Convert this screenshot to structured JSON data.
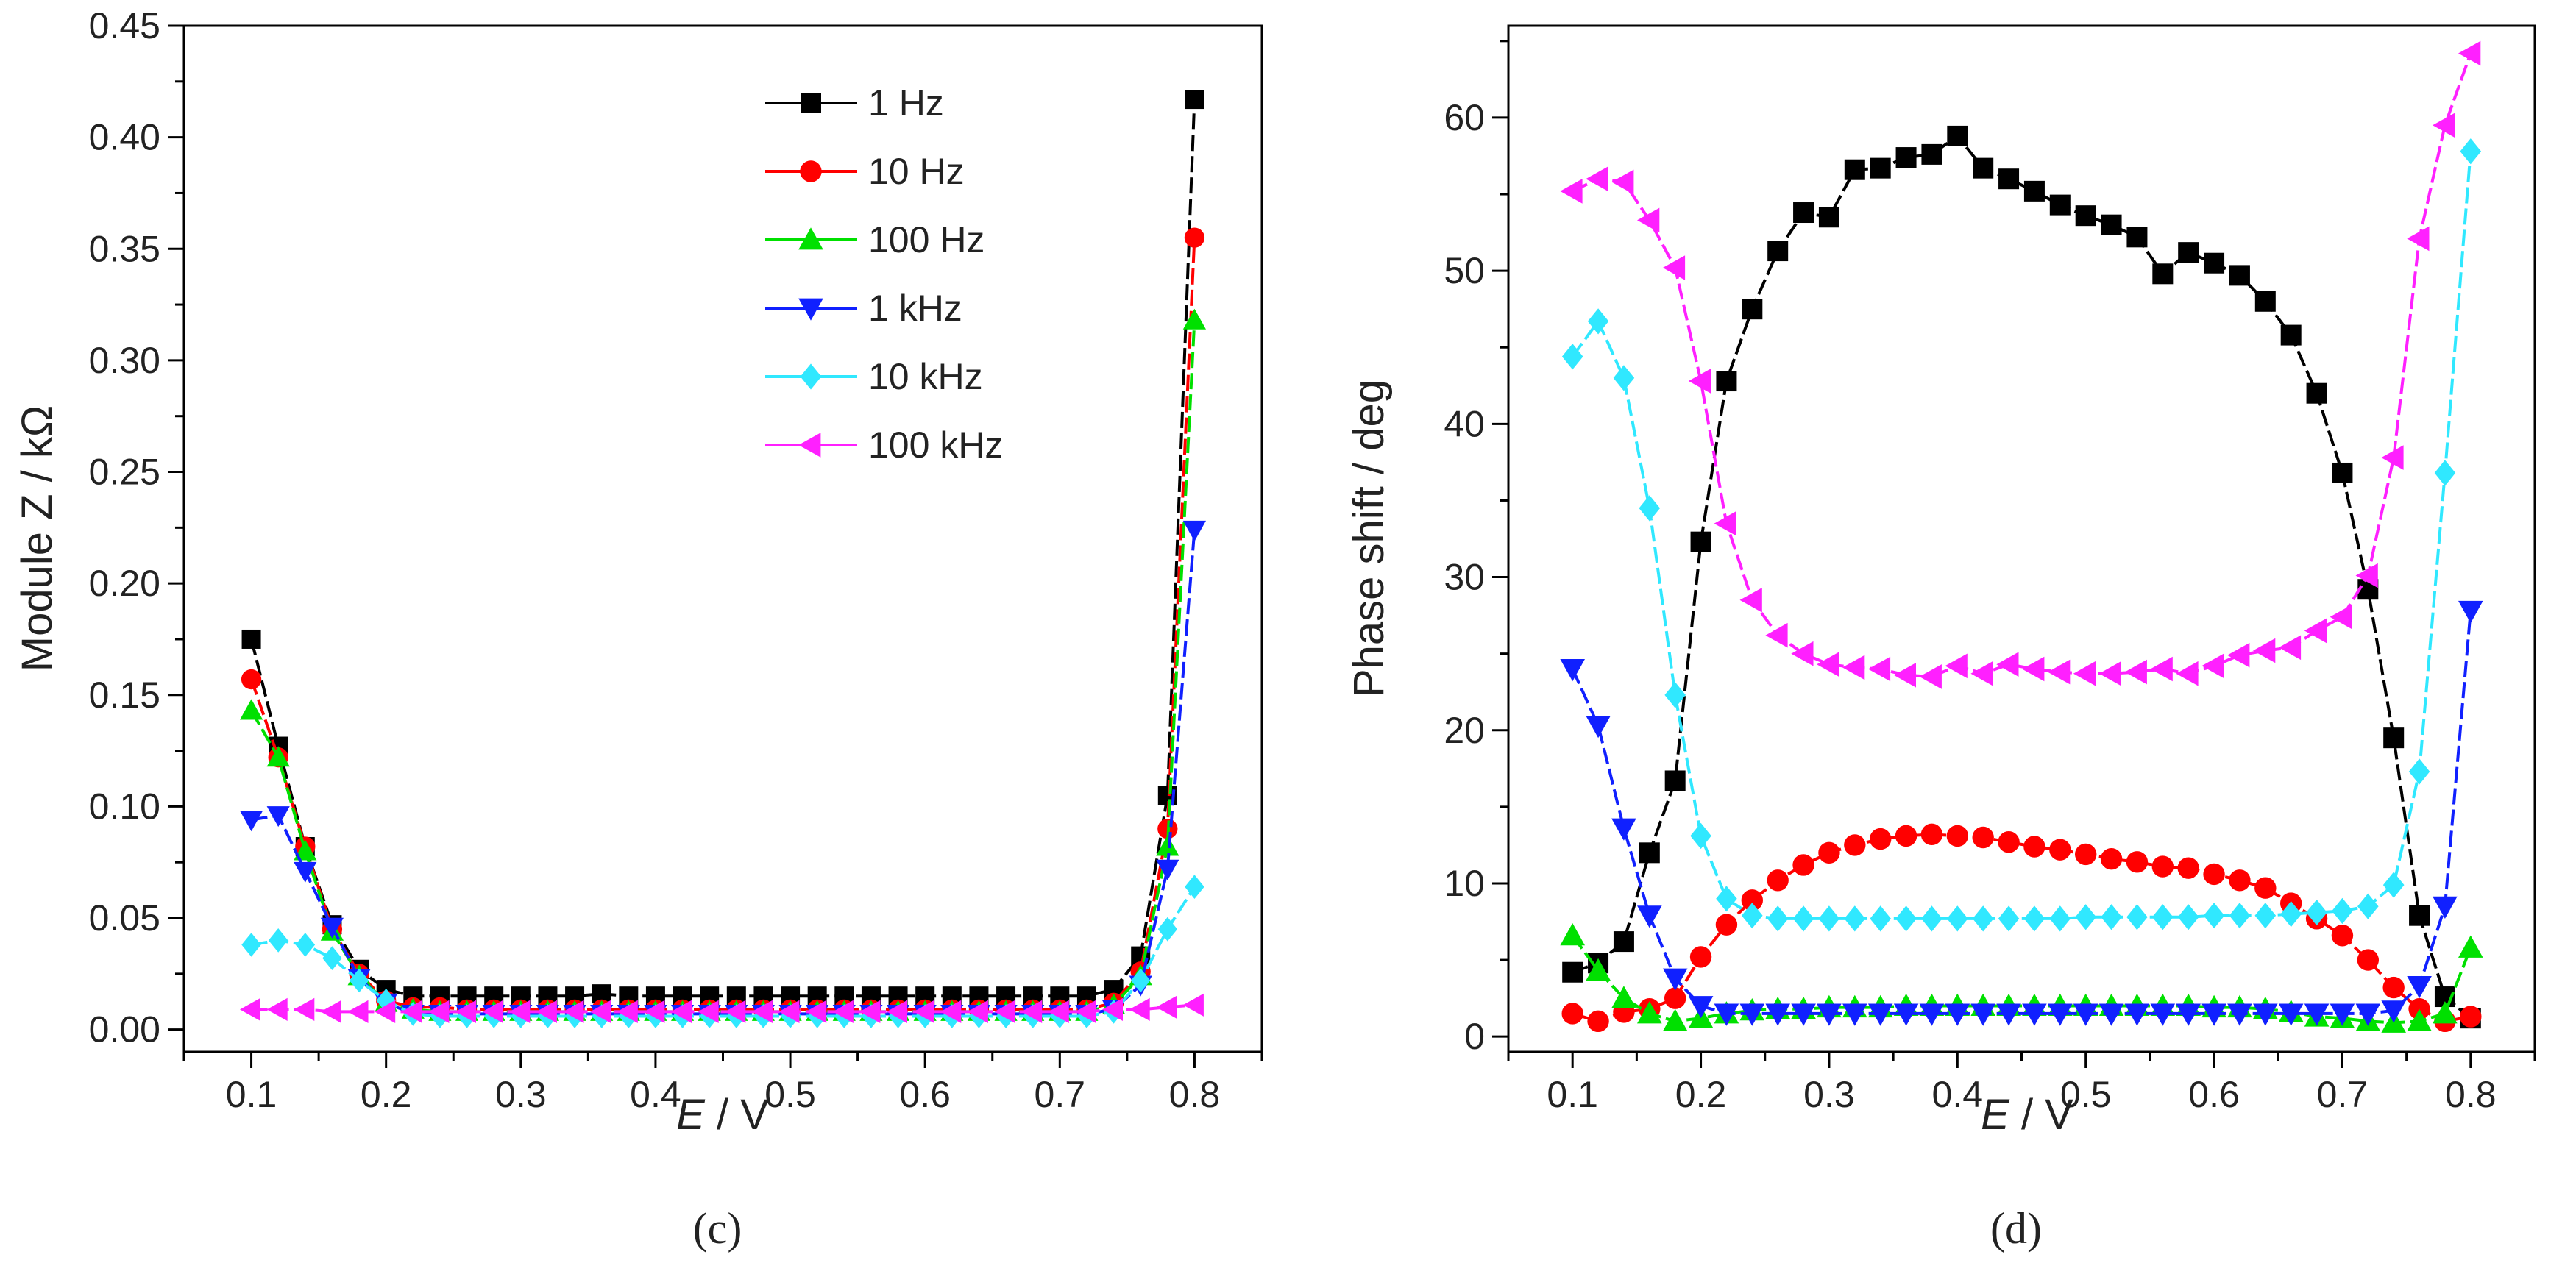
{
  "chart_data": [
    {
      "type": "line",
      "panel": "(c)",
      "xlabel": "E / V",
      "xlabel_italic": "E",
      "xlabel_rest": " / V",
      "ylabel": "Module Z / kΩ",
      "xlim": [
        0.05,
        0.85
      ],
      "ylim": [
        -0.01,
        0.45
      ],
      "xticks": [
        0.1,
        0.2,
        0.3,
        0.4,
        0.5,
        0.6,
        0.7,
        0.8
      ],
      "yticks": [
        0.0,
        0.05,
        0.1,
        0.15,
        0.2,
        0.25,
        0.3,
        0.35,
        0.4,
        0.45
      ],
      "legend": "top-right",
      "x": [
        0.1,
        0.12,
        0.14,
        0.16,
        0.18,
        0.2,
        0.22,
        0.24,
        0.26,
        0.28,
        0.3,
        0.32,
        0.34,
        0.36,
        0.38,
        0.4,
        0.42,
        0.44,
        0.46,
        0.48,
        0.5,
        0.52,
        0.54,
        0.56,
        0.58,
        0.6,
        0.62,
        0.64,
        0.66,
        0.68,
        0.7,
        0.72,
        0.74,
        0.76,
        0.78,
        0.8
      ],
      "series": [
        {
          "name": "1 Hz",
          "color": "#000000",
          "marker": "square",
          "values": [
            0.175,
            0.127,
            0.082,
            0.047,
            0.027,
            0.018,
            0.015,
            0.015,
            0.015,
            0.015,
            0.015,
            0.015,
            0.015,
            0.016,
            0.015,
            0.015,
            0.015,
            0.015,
            0.015,
            0.015,
            0.015,
            0.015,
            0.015,
            0.015,
            0.015,
            0.015,
            0.015,
            0.015,
            0.015,
            0.015,
            0.015,
            0.015,
            0.018,
            0.033,
            0.105,
            0.417
          ]
        },
        {
          "name": "10 Hz",
          "color": "#ff0000",
          "marker": "circle",
          "values": [
            0.157,
            0.122,
            0.082,
            0.045,
            0.025,
            0.013,
            0.01,
            0.01,
            0.009,
            0.009,
            0.009,
            0.009,
            0.009,
            0.009,
            0.009,
            0.009,
            0.009,
            0.009,
            0.009,
            0.009,
            0.009,
            0.009,
            0.009,
            0.009,
            0.009,
            0.009,
            0.009,
            0.009,
            0.009,
            0.009,
            0.009,
            0.009,
            0.012,
            0.026,
            0.09,
            0.355
          ]
        },
        {
          "name": "100 Hz",
          "color": "#00e000",
          "marker": "triangle-up",
          "values": [
            0.143,
            0.122,
            0.08,
            0.044,
            0.024,
            0.012,
            0.009,
            0.008,
            0.008,
            0.008,
            0.008,
            0.008,
            0.008,
            0.008,
            0.008,
            0.008,
            0.008,
            0.008,
            0.008,
            0.008,
            0.008,
            0.008,
            0.008,
            0.008,
            0.008,
            0.008,
            0.008,
            0.008,
            0.008,
            0.008,
            0.008,
            0.008,
            0.011,
            0.024,
            0.082,
            0.318
          ]
        },
        {
          "name": "1 kHz",
          "color": "#1020ff",
          "marker": "triangle-down",
          "values": [
            0.094,
            0.096,
            0.071,
            0.046,
            0.023,
            0.012,
            0.007,
            0.007,
            0.007,
            0.007,
            0.007,
            0.007,
            0.007,
            0.007,
            0.007,
            0.007,
            0.007,
            0.007,
            0.007,
            0.007,
            0.007,
            0.007,
            0.007,
            0.007,
            0.007,
            0.007,
            0.007,
            0.007,
            0.007,
            0.007,
            0.007,
            0.007,
            0.009,
            0.02,
            0.072,
            0.224
          ]
        },
        {
          "name": "10 kHz",
          "color": "#30e8ff",
          "marker": "diamond",
          "values": [
            0.038,
            0.04,
            0.038,
            0.032,
            0.022,
            0.013,
            0.007,
            0.006,
            0.006,
            0.006,
            0.006,
            0.006,
            0.006,
            0.006,
            0.006,
            0.006,
            0.006,
            0.006,
            0.006,
            0.006,
            0.006,
            0.006,
            0.006,
            0.006,
            0.006,
            0.006,
            0.006,
            0.006,
            0.006,
            0.006,
            0.006,
            0.006,
            0.008,
            0.022,
            0.045,
            0.064
          ]
        },
        {
          "name": "100 kHz",
          "color": "#ff20ff",
          "marker": "triangle-left",
          "values": [
            0.009,
            0.009,
            0.009,
            0.008,
            0.008,
            0.008,
            0.008,
            0.008,
            0.008,
            0.008,
            0.008,
            0.008,
            0.008,
            0.008,
            0.008,
            0.008,
            0.008,
            0.008,
            0.008,
            0.008,
            0.008,
            0.008,
            0.008,
            0.008,
            0.008,
            0.008,
            0.008,
            0.008,
            0.008,
            0.008,
            0.008,
            0.008,
            0.009,
            0.009,
            0.01,
            0.011
          ]
        }
      ]
    },
    {
      "type": "line",
      "panel": "(d)",
      "xlabel": "E / V",
      "xlabel_italic": "E",
      "xlabel_rest": " / V",
      "ylabel": "Phase shift / deg",
      "xlim": [
        0.05,
        0.85
      ],
      "ylim": [
        -1,
        66
      ],
      "xticks": [
        0.1,
        0.2,
        0.3,
        0.4,
        0.5,
        0.6,
        0.7,
        0.8
      ],
      "yticks": [
        0,
        10,
        20,
        30,
        40,
        50,
        60
      ],
      "x": [
        0.1,
        0.12,
        0.14,
        0.16,
        0.18,
        0.2,
        0.22,
        0.24,
        0.26,
        0.28,
        0.3,
        0.32,
        0.34,
        0.36,
        0.38,
        0.4,
        0.42,
        0.44,
        0.46,
        0.48,
        0.5,
        0.52,
        0.54,
        0.56,
        0.58,
        0.6,
        0.62,
        0.64,
        0.66,
        0.68,
        0.7,
        0.72,
        0.74,
        0.76,
        0.78,
        0.8
      ],
      "series": [
        {
          "name": "1 Hz",
          "color": "#000000",
          "marker": "square",
          "values": [
            4.2,
            4.8,
            6.2,
            12.0,
            16.7,
            32.3,
            42.8,
            47.5,
            51.3,
            53.8,
            53.5,
            56.6,
            56.7,
            57.4,
            57.6,
            58.8,
            56.7,
            56.0,
            55.2,
            54.3,
            53.6,
            53.0,
            52.2,
            49.8,
            51.2,
            50.5,
            49.7,
            48.0,
            45.8,
            42.0,
            36.8,
            29.2,
            19.5,
            7.9,
            2.6,
            1.2
          ]
        },
        {
          "name": "10 Hz",
          "color": "#ff0000",
          "marker": "circle",
          "values": [
            1.5,
            1.0,
            1.6,
            1.8,
            2.5,
            5.2,
            7.3,
            8.9,
            10.2,
            11.2,
            12.0,
            12.5,
            12.9,
            13.1,
            13.2,
            13.1,
            13.0,
            12.7,
            12.4,
            12.2,
            11.9,
            11.6,
            11.4,
            11.1,
            11.0,
            10.6,
            10.2,
            9.7,
            8.7,
            7.7,
            6.6,
            5.0,
            3.2,
            1.8,
            1.0,
            1.3
          ]
        },
        {
          "name": "100 Hz",
          "color": "#00e000",
          "marker": "triangle-up",
          "values": [
            6.6,
            4.3,
            2.5,
            1.5,
            1.0,
            1.2,
            1.5,
            1.7,
            1.8,
            1.8,
            1.9,
            1.9,
            1.9,
            2.0,
            2.0,
            2.0,
            2.0,
            2.0,
            2.0,
            2.0,
            2.0,
            2.0,
            2.0,
            2.0,
            2.0,
            1.9,
            1.9,
            1.8,
            1.6,
            1.3,
            1.2,
            1.0,
            0.9,
            1.0,
            1.5,
            5.8
          ]
        },
        {
          "name": "1 kHz",
          "color": "#1020ff",
          "marker": "triangle-down",
          "values": [
            24.0,
            20.3,
            13.6,
            7.9,
            3.8,
            2.0,
            1.5,
            1.5,
            1.5,
            1.5,
            1.5,
            1.5,
            1.5,
            1.5,
            1.5,
            1.5,
            1.5,
            1.5,
            1.5,
            1.5,
            1.5,
            1.5,
            1.5,
            1.5,
            1.5,
            1.5,
            1.5,
            1.5,
            1.5,
            1.5,
            1.5,
            1.5,
            1.7,
            3.3,
            8.5,
            27.8
          ]
        },
        {
          "name": "10 kHz",
          "color": "#30e8ff",
          "marker": "diamond",
          "values": [
            44.4,
            46.7,
            43.0,
            34.5,
            22.3,
            13.1,
            9.0,
            7.9,
            7.7,
            7.7,
            7.7,
            7.7,
            7.7,
            7.7,
            7.7,
            7.7,
            7.7,
            7.7,
            7.7,
            7.7,
            7.8,
            7.8,
            7.8,
            7.8,
            7.8,
            7.9,
            7.9,
            7.9,
            8.0,
            8.1,
            8.2,
            8.5,
            9.9,
            17.3,
            36.8,
            57.8
          ]
        },
        {
          "name": "100 kHz",
          "color": "#ff20ff",
          "marker": "triangle-left",
          "values": [
            55.2,
            56.0,
            55.8,
            53.3,
            50.2,
            42.8,
            33.5,
            28.5,
            26.2,
            25.0,
            24.3,
            24.1,
            24.0,
            23.6,
            23.5,
            24.2,
            23.7,
            24.3,
            24.0,
            23.8,
            23.7,
            23.7,
            23.8,
            24.0,
            23.7,
            24.2,
            24.9,
            25.2,
            25.4,
            26.5,
            27.4,
            30.1,
            37.8,
            52.1,
            59.5,
            64.2
          ]
        }
      ]
    }
  ]
}
